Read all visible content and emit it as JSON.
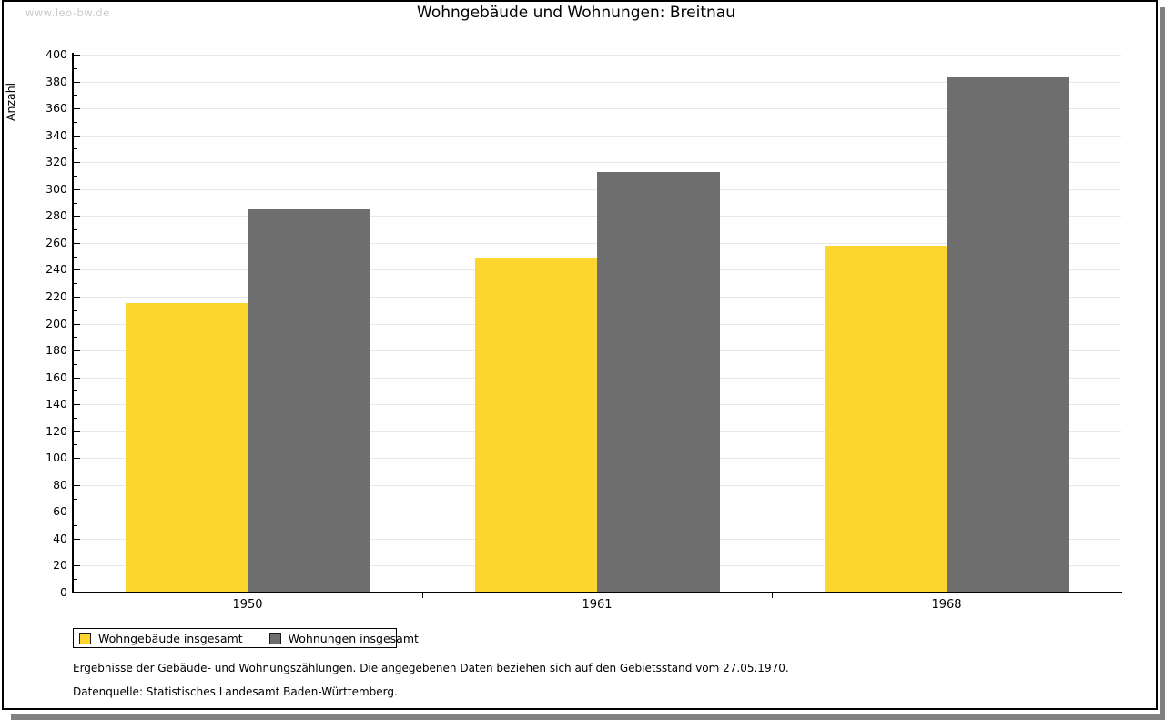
{
  "watermark": "www.leo-bw.de",
  "title": "Wohngebäude und Wohnungen: Breitnau",
  "chart_data": {
    "type": "bar",
    "title": "Wohngebäude und Wohnungen: Breitnau",
    "ylabel": "Anzahl",
    "xlabel": "",
    "categories": [
      "1950",
      "1961",
      "1968"
    ],
    "series": [
      {
        "name": "Wohngebäude insgesamt",
        "color": "#fcd52e",
        "values": [
          215,
          249,
          258
        ]
      },
      {
        "name": "Wohnungen insgesamt",
        "color": "#6e6e6e",
        "values": [
          285,
          313,
          383
        ]
      }
    ],
    "ylim": [
      0,
      400
    ],
    "ytick_major": 20,
    "ytick_minor": 10,
    "grid": true,
    "legend_position": "bottom-left"
  },
  "footer": {
    "line1": "Ergebnisse der Gebäude- und Wohnungszählungen. Die angegebenen Daten beziehen sich auf den Gebietsstand vom 27.05.1970.",
    "line2": "Datenquelle: Statistisches Landesamt Baden-Württemberg."
  },
  "colors": {
    "bar_yellow": "#fcd52e",
    "bar_gray": "#6e6e6e",
    "gridline": "#e8e8e8",
    "axis": "#000000",
    "watermark": "#cbcbcb",
    "shadow": "#808080",
    "background": "#ffffff"
  }
}
